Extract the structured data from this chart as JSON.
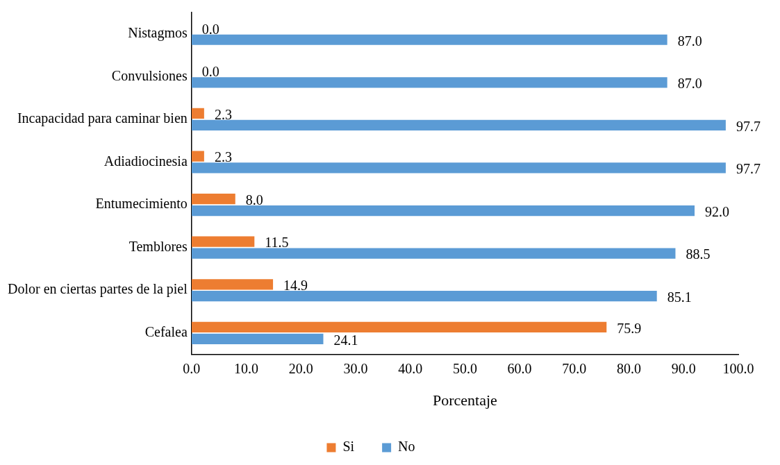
{
  "chart_data": {
    "type": "bar",
    "orientation": "horizontal",
    "xlabel": "Porcentaje",
    "categories": [
      "Nistagmos",
      "Convulsiones",
      "Incapacidad para caminar bien",
      "Adiadiocinesia",
      "Entumecimiento",
      "Temblores",
      "Dolor en ciertas partes de la piel",
      "Cefalea"
    ],
    "series": [
      {
        "name": "Si",
        "color": "#ed7d31",
        "values": [
          0.0,
          0.0,
          2.3,
          2.3,
          8.0,
          11.5,
          14.9,
          75.9
        ],
        "value_labels": [
          "0.0",
          "0.0",
          "2.3",
          "2.3",
          "8.0",
          "11.5",
          "14.9",
          "75.9"
        ]
      },
      {
        "name": "No",
        "color": "#5b9bd5",
        "values": [
          87.0,
          87.0,
          97.7,
          97.7,
          92.0,
          88.5,
          85.1,
          24.1
        ],
        "value_labels": [
          "87.0",
          "87.0",
          "97.7",
          "97.7",
          "92.0",
          "88.5",
          "85.1",
          "24.1"
        ]
      }
    ],
    "xlim": [
      0,
      100
    ],
    "xticks": [
      {
        "value": 0,
        "label": "0.0"
      },
      {
        "value": 10,
        "label": "10.0"
      },
      {
        "value": 20,
        "label": "20.0"
      },
      {
        "value": 30,
        "label": "30.0"
      },
      {
        "value": 40,
        "label": "40.0"
      },
      {
        "value": 50,
        "label": "50.0"
      },
      {
        "value": 60,
        "label": "60.0"
      },
      {
        "value": 70,
        "label": "70.0"
      },
      {
        "value": 80,
        "label": "80.0"
      },
      {
        "value": 90,
        "label": "90.0"
      },
      {
        "value": 100,
        "label": "100.0"
      }
    ],
    "grid": false,
    "legend": "bottom"
  }
}
